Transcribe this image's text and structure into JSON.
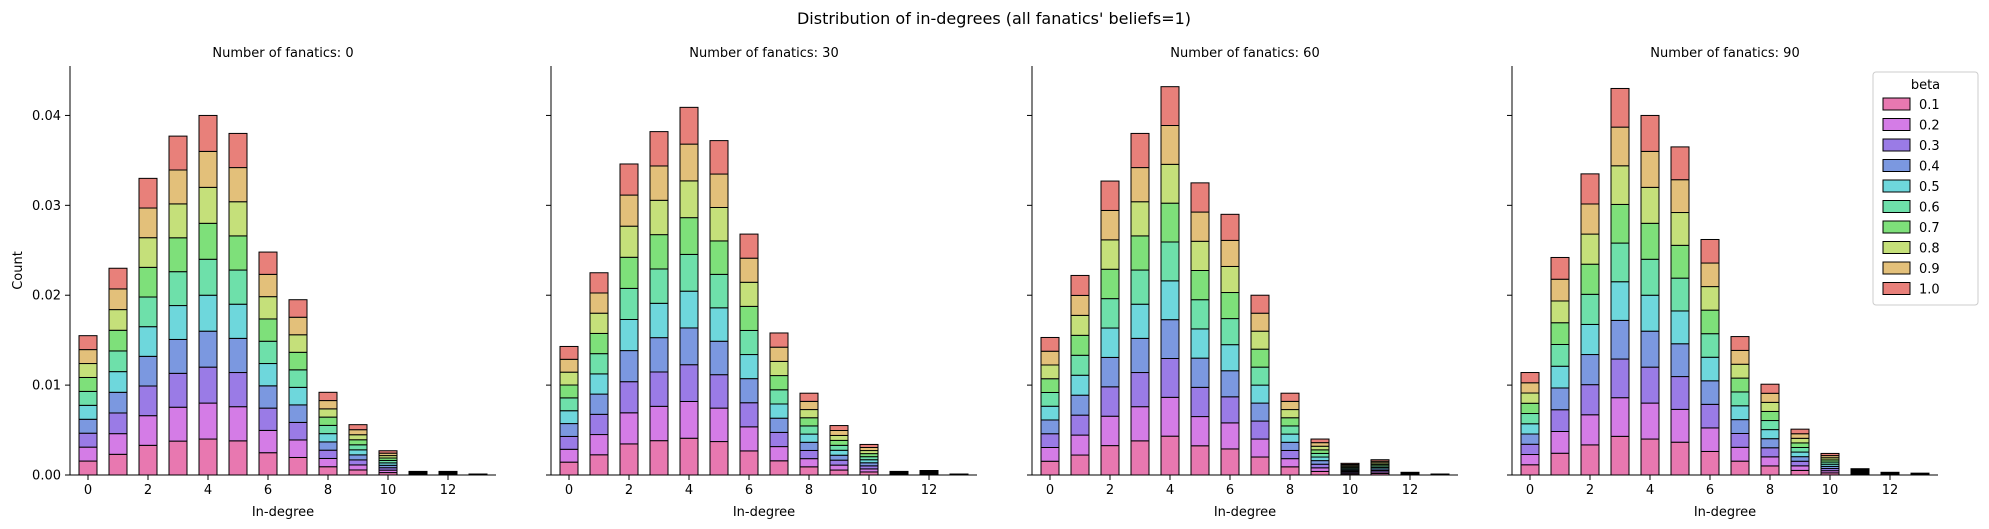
{
  "figure": {
    "title": "Distribution of in-degrees (all fanatics' beliefs=1)"
  },
  "legend": {
    "title": "beta",
    "placement": "top-right",
    "entries": [
      "0.1",
      "0.2",
      "0.3",
      "0.4",
      "0.5",
      "0.6",
      "0.7",
      "0.8",
      "0.9",
      "1.0"
    ],
    "colors": [
      "#e878b0",
      "#d47ce6",
      "#9a7be6",
      "#7b98e0",
      "#6ed7dc",
      "#6ee0aa",
      "#7ee07a",
      "#c5e07a",
      "#e3c07a",
      "#e8807a"
    ]
  },
  "chart_data": [
    {
      "type": "bar",
      "stacked": true,
      "title": "Number of fanatics: 0",
      "xlabel": "In-degree",
      "ylabel": "Count",
      "xlim": [
        -0.6,
        13.6
      ],
      "ylim": [
        0,
        0.0455
      ],
      "xticks": [
        0,
        2,
        4,
        6,
        8,
        10,
        12
      ],
      "yticks": [
        0.0,
        0.01,
        0.02,
        0.03,
        0.04
      ],
      "ytick_labels": [
        "0.00",
        "0.01",
        "0.02",
        "0.03",
        "0.04"
      ],
      "categories": [
        0,
        1,
        2,
        3,
        4,
        5,
        6,
        7,
        8,
        9,
        10,
        11,
        12,
        13
      ],
      "totals": [
        0.0155,
        0.023,
        0.033,
        0.0377,
        0.04,
        0.038,
        0.0248,
        0.0195,
        0.0092,
        0.0056,
        0.0027,
        0.0004,
        0.0004,
        0.0001
      ]
    },
    {
      "type": "bar",
      "stacked": true,
      "title": "Number of fanatics: 30",
      "xlabel": "In-degree",
      "ylabel": "",
      "xlim": [
        -0.6,
        13.6
      ],
      "ylim": [
        0,
        0.0455
      ],
      "xticks": [
        0,
        2,
        4,
        6,
        8,
        10,
        12
      ],
      "categories": [
        0,
        1,
        2,
        3,
        4,
        5,
        6,
        7,
        8,
        9,
        10,
        11,
        12,
        13
      ],
      "totals": [
        0.0143,
        0.0225,
        0.0346,
        0.0382,
        0.0409,
        0.0372,
        0.0268,
        0.0158,
        0.0091,
        0.0055,
        0.0034,
        0.0004,
        0.0005,
        0.0001
      ]
    },
    {
      "type": "bar",
      "stacked": true,
      "title": "Number of fanatics: 60",
      "xlabel": "In-degree",
      "ylabel": "",
      "xlim": [
        -0.6,
        13.6
      ],
      "ylim": [
        0,
        0.0455
      ],
      "xticks": [
        0,
        2,
        4,
        6,
        8,
        10,
        12
      ],
      "categories": [
        0,
        1,
        2,
        3,
        4,
        5,
        6,
        7,
        8,
        9,
        10,
        11,
        12,
        13
      ],
      "totals": [
        0.0153,
        0.0222,
        0.0327,
        0.038,
        0.0432,
        0.0325,
        0.029,
        0.02,
        0.0091,
        0.004,
        0.0013,
        0.0017,
        0.0003,
        0.0001
      ]
    },
    {
      "type": "bar",
      "stacked": true,
      "title": "Number of fanatics: 90",
      "xlabel": "In-degree",
      "ylabel": "",
      "xlim": [
        -0.6,
        13.6
      ],
      "ylim": [
        0,
        0.0455
      ],
      "xticks": [
        0,
        2,
        4,
        6,
        8,
        10,
        12
      ],
      "categories": [
        0,
        1,
        2,
        3,
        4,
        5,
        6,
        7,
        8,
        9,
        10,
        11,
        12,
        13
      ],
      "totals": [
        0.0114,
        0.0242,
        0.0335,
        0.043,
        0.04,
        0.0365,
        0.0262,
        0.0154,
        0.0101,
        0.0051,
        0.0024,
        0.0007,
        0.0003,
        0.0002
      ]
    }
  ]
}
